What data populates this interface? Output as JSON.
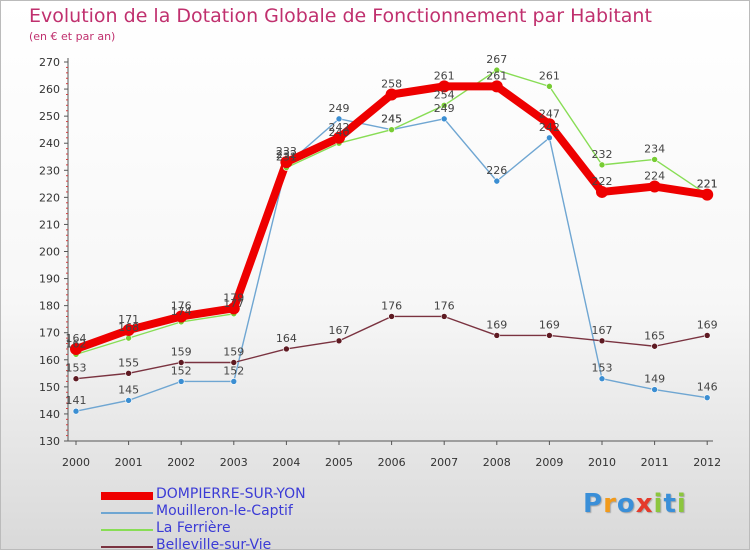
{
  "title": "Evolution de la Dotation Globale de Fonctionnement par Habitant",
  "subtitle": "(en € et par an)",
  "logo": {
    "letters": [
      "P",
      "r",
      "o",
      "x",
      "i",
      "t",
      "i"
    ],
    "colors": [
      "#3a8fd8",
      "#f29a1a",
      "#3a8fd8",
      "#e53b2c",
      "#8cc63e",
      "#3a8fd8",
      "#8cc63e"
    ]
  },
  "chart_data": {
    "type": "line",
    "title": "Evolution de la Dotation Globale de Fonctionnement par Habitant",
    "xlabel": "",
    "ylabel": "(en € et par an)",
    "x": [
      "2000",
      "2001",
      "2002",
      "2003",
      "2004",
      "2005",
      "2006",
      "2007",
      "2008",
      "2009",
      "2010",
      "2011",
      "2012"
    ],
    "ylim": [
      130,
      270
    ],
    "yticks": [
      130,
      140,
      150,
      160,
      170,
      180,
      190,
      200,
      210,
      220,
      230,
      240,
      250,
      260,
      270
    ],
    "grid": false,
    "legend_position": "bottom-left",
    "series": [
      {
        "name": "DOMPIERRE-SUR-YON",
        "color": "#ee0000",
        "width": "thick",
        "values": [
          164,
          171,
          176,
          179,
          233,
          242,
          258,
          261,
          261,
          247,
          222,
          224,
          221
        ]
      },
      {
        "name": "Mouilleron-le-Captif",
        "color": "#6fa6d2",
        "marker": "#3b8ed2",
        "width": "thin",
        "values": [
          141,
          145,
          152,
          152,
          232,
          249,
          245,
          249,
          226,
          242,
          153,
          149,
          146
        ]
      },
      {
        "name": "La Ferrière",
        "color": "#88dd55",
        "marker": "#77cc33",
        "width": "thin",
        "values": [
          162,
          168,
          174,
          177,
          231,
          240,
          245,
          254,
          267,
          261,
          232,
          234,
          221
        ]
      },
      {
        "name": "Belleville-sur-Vie",
        "color": "#7a3340",
        "marker": "#5e1a22",
        "width": "thin",
        "values": [
          153,
          155,
          159,
          159,
          164,
          167,
          176,
          176,
          169,
          169,
          167,
          165,
          169
        ]
      }
    ]
  }
}
